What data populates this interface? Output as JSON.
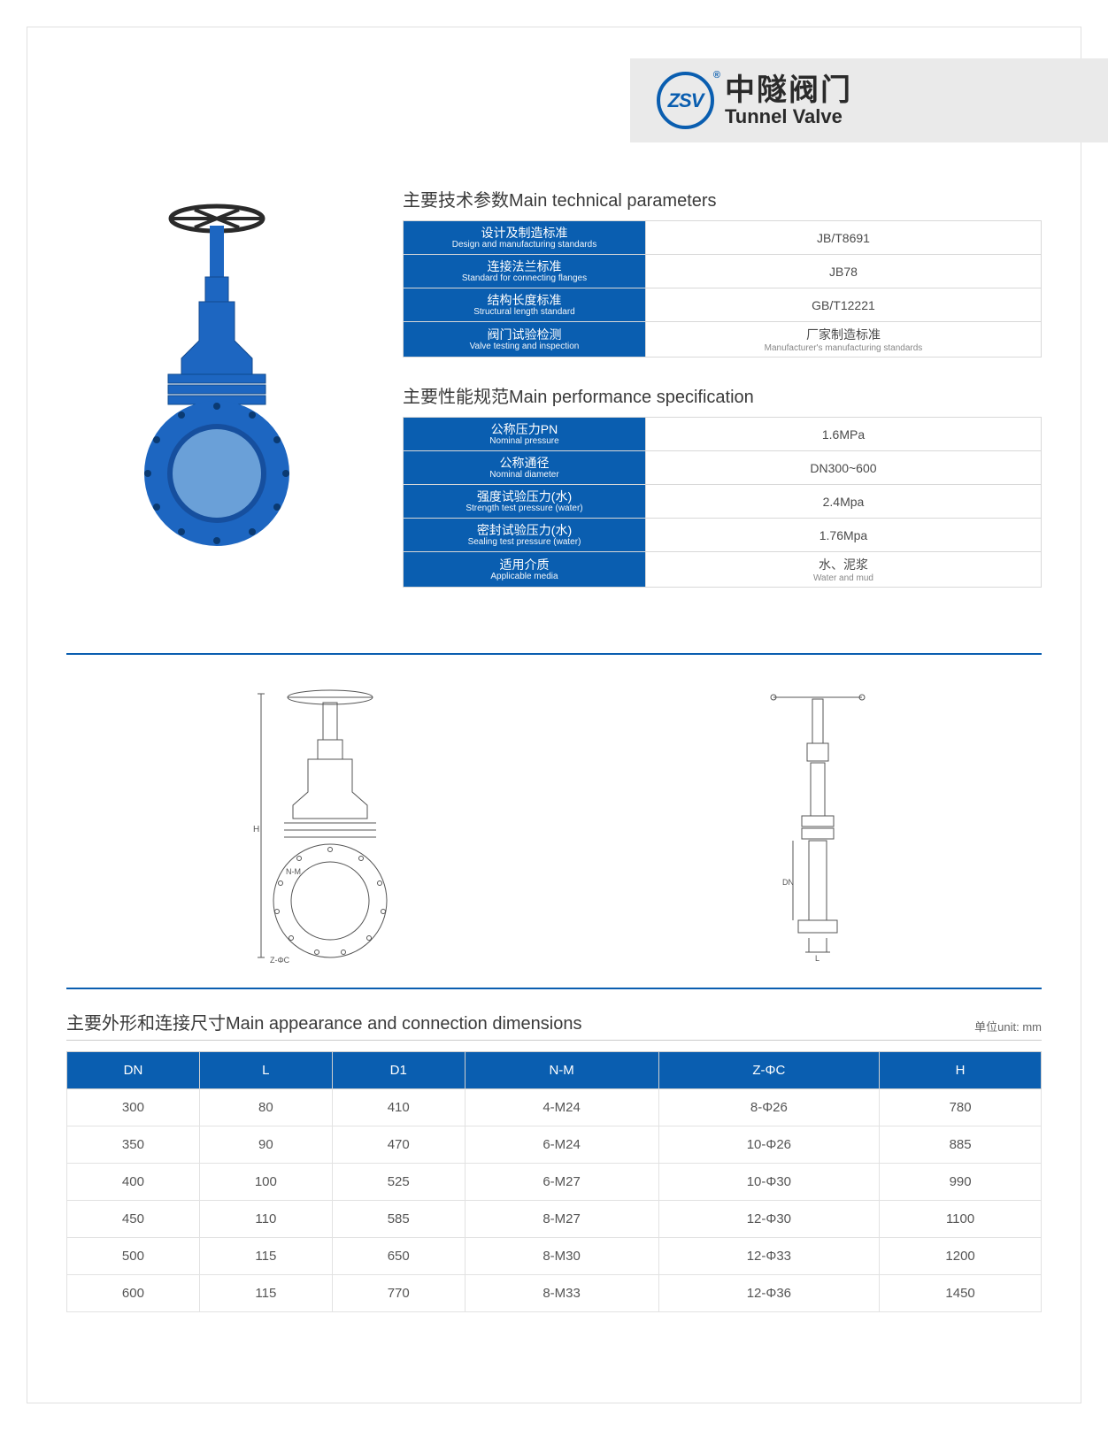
{
  "brand": {
    "logo_text": "ZSV",
    "cn": "中隧阀门",
    "en": "Tunnel Valve",
    "accent_color": "#0a5eb0",
    "bar_bg": "#eaeaea"
  },
  "tech_params": {
    "title": "主要技术参数Main technical parameters",
    "rows": [
      {
        "label_cn": "设计及制造标准",
        "label_en": "Design and manufacturing standards",
        "value": "JB/T8691"
      },
      {
        "label_cn": "连接法兰标准",
        "label_en": "Standard for connecting flanges",
        "value": "JB78"
      },
      {
        "label_cn": "结构长度标准",
        "label_en": "Structural length standard",
        "value": "GB/T12221"
      },
      {
        "label_cn": "阀门试验检测",
        "label_en": "Valve testing and inspection",
        "value_cn": "厂家制造标准",
        "value_en": "Manufacturer's manufacturing standards"
      }
    ]
  },
  "perf_spec": {
    "title": "主要性能规范Main performance specification",
    "rows": [
      {
        "label_cn": "公称压力PN",
        "label_en": "Nominal pressure",
        "value": "1.6MPa"
      },
      {
        "label_cn": "公称通径",
        "label_en": "Nominal diameter",
        "value": "DN300~600"
      },
      {
        "label_cn": "强度试验压力(水)",
        "label_en": "Strength test pressure (water)",
        "value": "2.4Mpa"
      },
      {
        "label_cn": "密封试验压力(水)",
        "label_en": "Sealing test pressure (water)",
        "value": "1.76Mpa"
      },
      {
        "label_cn": "适用介质",
        "label_en": "Applicable media",
        "value_cn": "水、泥浆",
        "value_en": "Water and mud"
      }
    ]
  },
  "dimensions": {
    "title": "主要外形和连接尺寸Main appearance and connection dimensions",
    "unit": "单位unit: mm",
    "columns": [
      "DN",
      "L",
      "D1",
      "N-M",
      "Z-ΦC",
      "H"
    ],
    "rows": [
      [
        "300",
        "80",
        "410",
        "4-M24",
        "8-Φ26",
        "780"
      ],
      [
        "350",
        "90",
        "470",
        "6-M24",
        "10-Φ26",
        "885"
      ],
      [
        "400",
        "100",
        "525",
        "6-M27",
        "10-Φ30",
        "990"
      ],
      [
        "450",
        "110",
        "585",
        "8-M27",
        "12-Φ30",
        "1100"
      ],
      [
        "500",
        "115",
        "650",
        "8-M30",
        "12-Φ33",
        "1200"
      ],
      [
        "600",
        "115",
        "770",
        "8-M33",
        "12-Φ36",
        "1450"
      ]
    ]
  },
  "diagram_labels": {
    "h": "H",
    "nm": "N-M",
    "zoc": "Z-ΦC",
    "dn": "DN",
    "l": "L"
  },
  "colors": {
    "page_bg": "#ffffff",
    "header_bg": "#0a5eb0",
    "border": "#d8d8d8",
    "text": "#4a4a4a",
    "valve_body": "#1d66c1",
    "valve_shadow": "#144a8e"
  }
}
